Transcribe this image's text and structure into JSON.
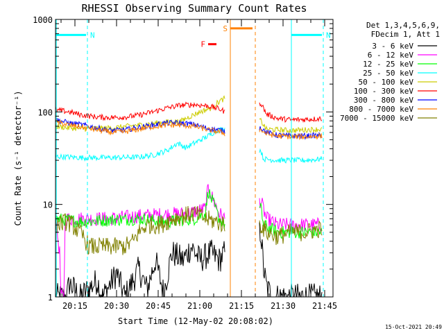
{
  "chart_data": {
    "type": "line",
    "title": "RHESSI Observing Summary Count Rates",
    "xlabel": "Start Time (12-May-02 20:08:02)",
    "ylabel": "Count Rate (s⁻¹ detector⁻¹)",
    "yscale": "log",
    "ylim": [
      1,
      1000
    ],
    "xlim_minutes": [
      0,
      100
    ],
    "x_ticks": [
      {
        "t": 7,
        "label": "20:15"
      },
      {
        "t": 22,
        "label": "20:30"
      },
      {
        "t": 37,
        "label": "20:45"
      },
      {
        "t": 52,
        "label": "21:00"
      },
      {
        "t": 67,
        "label": "21:15"
      },
      {
        "t": 82,
        "label": "21:30"
      },
      {
        "t": 97,
        "label": "21:45"
      }
    ],
    "y_ticks": [
      {
        "v": 1,
        "label": "1"
      },
      {
        "v": 10,
        "label": "10"
      },
      {
        "v": 100,
        "label": "100"
      },
      {
        "v": 1000,
        "label": "1000"
      }
    ],
    "legend": {
      "placement": "right",
      "header": [
        "Det 1,3,4,5,6,9,",
        "FDecim 1, Att 1"
      ],
      "items": [
        {
          "label": "3 - 6 keV",
          "color": "#000000"
        },
        {
          "label": "6 - 12 keV",
          "color": "#ff00ff"
        },
        {
          "label": "12 - 25 keV",
          "color": "#00ff00"
        },
        {
          "label": "25 - 50 keV",
          "color": "#00ffff"
        },
        {
          "label": "50 - 100 keV",
          "color": "#cccc00"
        },
        {
          "label": "100 - 300 keV",
          "color": "#ff0000"
        },
        {
          "label": "300 - 800 keV",
          "color": "#0000ff"
        },
        {
          "label": "800 - 7000 keV",
          "color": "#ff8000"
        },
        {
          "label": "7000 - 15000 keV",
          "color": "#808000"
        }
      ]
    },
    "flags": [
      {
        "label": "N",
        "color": "#00ffff",
        "t_start": 0,
        "t_end": 11,
        "level": 680
      },
      {
        "label": "N",
        "color": "#00ffff",
        "t_start": 85,
        "t_end": 96,
        "level": 680
      },
      {
        "label": "F",
        "color": "#ff0000",
        "t_start": 55,
        "t_end": 58,
        "level": 540
      },
      {
        "label": "S",
        "color": "#ff8000",
        "t_start": 63,
        "t_end": 71,
        "level": 800
      }
    ],
    "vertical_markers": [
      {
        "t": 0.3,
        "color": "#00ffff",
        "style": "solid"
      },
      {
        "t": 11.5,
        "color": "#00ffff",
        "style": "dashed"
      },
      {
        "t": 85,
        "color": "#00ffff",
        "style": "solid"
      },
      {
        "t": 96.5,
        "color": "#00ffff",
        "style": "dashed"
      },
      {
        "t": 63,
        "color": "#ff8000",
        "style": "solid"
      },
      {
        "t": 72,
        "color": "#ff8000",
        "style": "dashed"
      }
    ],
    "data_gap_minutes": [
      61,
      73.5
    ],
    "series": [
      {
        "name": "3 - 6 keV",
        "color": "#000000",
        "noise": 0.15,
        "points": [
          [
            0,
            1
          ],
          [
            4,
            1
          ],
          [
            5,
            1.4
          ],
          [
            9,
            1
          ],
          [
            15,
            1.5
          ],
          [
            17,
            1
          ],
          [
            22,
            1.8
          ],
          [
            25,
            1
          ],
          [
            30,
            2
          ],
          [
            33,
            1.2
          ],
          [
            36,
            2.5
          ],
          [
            39,
            1.1
          ],
          [
            41,
            2.2
          ],
          [
            42,
            3
          ],
          [
            46,
            2.5
          ],
          [
            49,
            3.5
          ],
          [
            52,
            2.5
          ],
          [
            56,
            3
          ],
          [
            59,
            2.5
          ],
          [
            61,
            3
          ],
          [
            74,
            5
          ],
          [
            75,
            2
          ],
          [
            76,
            1.3
          ],
          [
            78,
            1
          ],
          [
            96,
            1
          ]
        ]
      },
      {
        "name": "6 - 12 keV",
        "color": "#ff00ff",
        "noise": 0.08,
        "points": [
          [
            0,
            7
          ],
          [
            1.5,
            3
          ],
          [
            2,
            1
          ],
          [
            3,
            1
          ],
          [
            3.5,
            7
          ],
          [
            10,
            7
          ],
          [
            20,
            7
          ],
          [
            30,
            7.5
          ],
          [
            40,
            7.8
          ],
          [
            48,
            8
          ],
          [
            54,
            9
          ],
          [
            55,
            15
          ],
          [
            57,
            11
          ],
          [
            59,
            8
          ],
          [
            61,
            7
          ],
          [
            74,
            11
          ],
          [
            76,
            7
          ],
          [
            80,
            6
          ],
          [
            90,
            6
          ],
          [
            96,
            6
          ]
        ]
      },
      {
        "name": "12 - 25 keV",
        "color": "#00ff00",
        "noise": 0.07,
        "points": [
          [
            0,
            7
          ],
          [
            10,
            6.5
          ],
          [
            20,
            6.8
          ],
          [
            30,
            7
          ],
          [
            40,
            6.5
          ],
          [
            50,
            7
          ],
          [
            54,
            8
          ],
          [
            55,
            14
          ],
          [
            57,
            10
          ],
          [
            59,
            7
          ],
          [
            61,
            6
          ],
          [
            74,
            9
          ],
          [
            75,
            6
          ],
          [
            80,
            5
          ],
          [
            90,
            5
          ],
          [
            96,
            5
          ]
        ]
      },
      {
        "name": "25 - 50 keV",
        "color": "#00ffff",
        "noise": 0.03,
        "points": [
          [
            0,
            33
          ],
          [
            10,
            32
          ],
          [
            20,
            32
          ],
          [
            30,
            32.5
          ],
          [
            35,
            34
          ],
          [
            40,
            38
          ],
          [
            44,
            46
          ],
          [
            47,
            41
          ],
          [
            50,
            46
          ],
          [
            55,
            55
          ],
          [
            58,
            63
          ],
          [
            61,
            66
          ],
          [
            74,
            38
          ],
          [
            75,
            31
          ],
          [
            80,
            30
          ],
          [
            90,
            30
          ],
          [
            96,
            31
          ]
        ]
      },
      {
        "name": "50 - 100 keV",
        "color": "#cccc00",
        "noise": 0.03,
        "points": [
          [
            0,
            70
          ],
          [
            5,
            67
          ],
          [
            10,
            66
          ],
          [
            20,
            67
          ],
          [
            30,
            72
          ],
          [
            40,
            78
          ],
          [
            45,
            79
          ],
          [
            48,
            88
          ],
          [
            52,
            100
          ],
          [
            56,
            110
          ],
          [
            59,
            130
          ],
          [
            61,
            140
          ],
          [
            74,
            80
          ],
          [
            76,
            65
          ],
          [
            85,
            63
          ],
          [
            90,
            64
          ],
          [
            96,
            65
          ]
        ]
      },
      {
        "name": "100 - 300 keV",
        "color": "#ff0000",
        "noise": 0.03,
        "points": [
          [
            0,
            105
          ],
          [
            5,
            100
          ],
          [
            10,
            92
          ],
          [
            15,
            88
          ],
          [
            20,
            87
          ],
          [
            25,
            88
          ],
          [
            30,
            92
          ],
          [
            35,
            100
          ],
          [
            40,
            110
          ],
          [
            45,
            118
          ],
          [
            50,
            120
          ],
          [
            55,
            116
          ],
          [
            58,
            110
          ],
          [
            60,
            105
          ],
          [
            61,
            100
          ],
          [
            74,
            125
          ],
          [
            76,
            95
          ],
          [
            80,
            85
          ],
          [
            85,
            82
          ],
          [
            90,
            83
          ],
          [
            96,
            85
          ]
        ]
      },
      {
        "name": "300 - 800 keV",
        "color": "#0000ff",
        "noise": 0.03,
        "points": [
          [
            0,
            82
          ],
          [
            5,
            76
          ],
          [
            10,
            72
          ],
          [
            15,
            67
          ],
          [
            20,
            63
          ],
          [
            25,
            64
          ],
          [
            30,
            68
          ],
          [
            35,
            72
          ],
          [
            40,
            76
          ],
          [
            45,
            76
          ],
          [
            50,
            73
          ],
          [
            55,
            66
          ],
          [
            60,
            63
          ],
          [
            61,
            62
          ],
          [
            74,
            68
          ],
          [
            76,
            60
          ],
          [
            80,
            56
          ],
          [
            85,
            55
          ],
          [
            90,
            55
          ],
          [
            96,
            56
          ]
        ]
      },
      {
        "name": "800 - 7000 keV",
        "color": "#ff8000",
        "noise": 0.03,
        "points": [
          [
            0,
            78
          ],
          [
            5,
            72
          ],
          [
            10,
            68
          ],
          [
            15,
            64
          ],
          [
            20,
            60
          ],
          [
            25,
            61
          ],
          [
            30,
            65
          ],
          [
            35,
            69
          ],
          [
            40,
            72
          ],
          [
            45,
            72
          ],
          [
            50,
            70
          ],
          [
            55,
            64
          ],
          [
            60,
            60
          ],
          [
            61,
            58
          ],
          [
            74,
            64
          ],
          [
            76,
            58
          ],
          [
            80,
            55
          ],
          [
            85,
            54
          ],
          [
            90,
            54
          ],
          [
            96,
            55
          ]
        ]
      },
      {
        "name": "7000 - 15000 keV",
        "color": "#808000",
        "noise": 0.1,
        "points": [
          [
            0,
            6
          ],
          [
            4,
            6.5
          ],
          [
            6,
            6
          ],
          [
            10,
            4.5
          ],
          [
            12,
            3.5
          ],
          [
            15,
            3.5
          ],
          [
            20,
            3.5
          ],
          [
            25,
            3.5
          ],
          [
            28,
            4
          ],
          [
            30,
            5
          ],
          [
            33,
            6
          ],
          [
            38,
            6
          ],
          [
            42,
            7
          ],
          [
            46,
            7.5
          ],
          [
            50,
            8
          ],
          [
            54,
            7
          ],
          [
            58,
            6.5
          ],
          [
            61,
            6
          ],
          [
            74,
            6
          ],
          [
            76,
            5
          ],
          [
            80,
            4.5
          ],
          [
            85,
            5
          ],
          [
            90,
            5
          ],
          [
            96,
            5.5
          ]
        ]
      }
    ],
    "grid": false
  },
  "footer": {
    "timestamp": "15-Oct-2021 20:49"
  }
}
